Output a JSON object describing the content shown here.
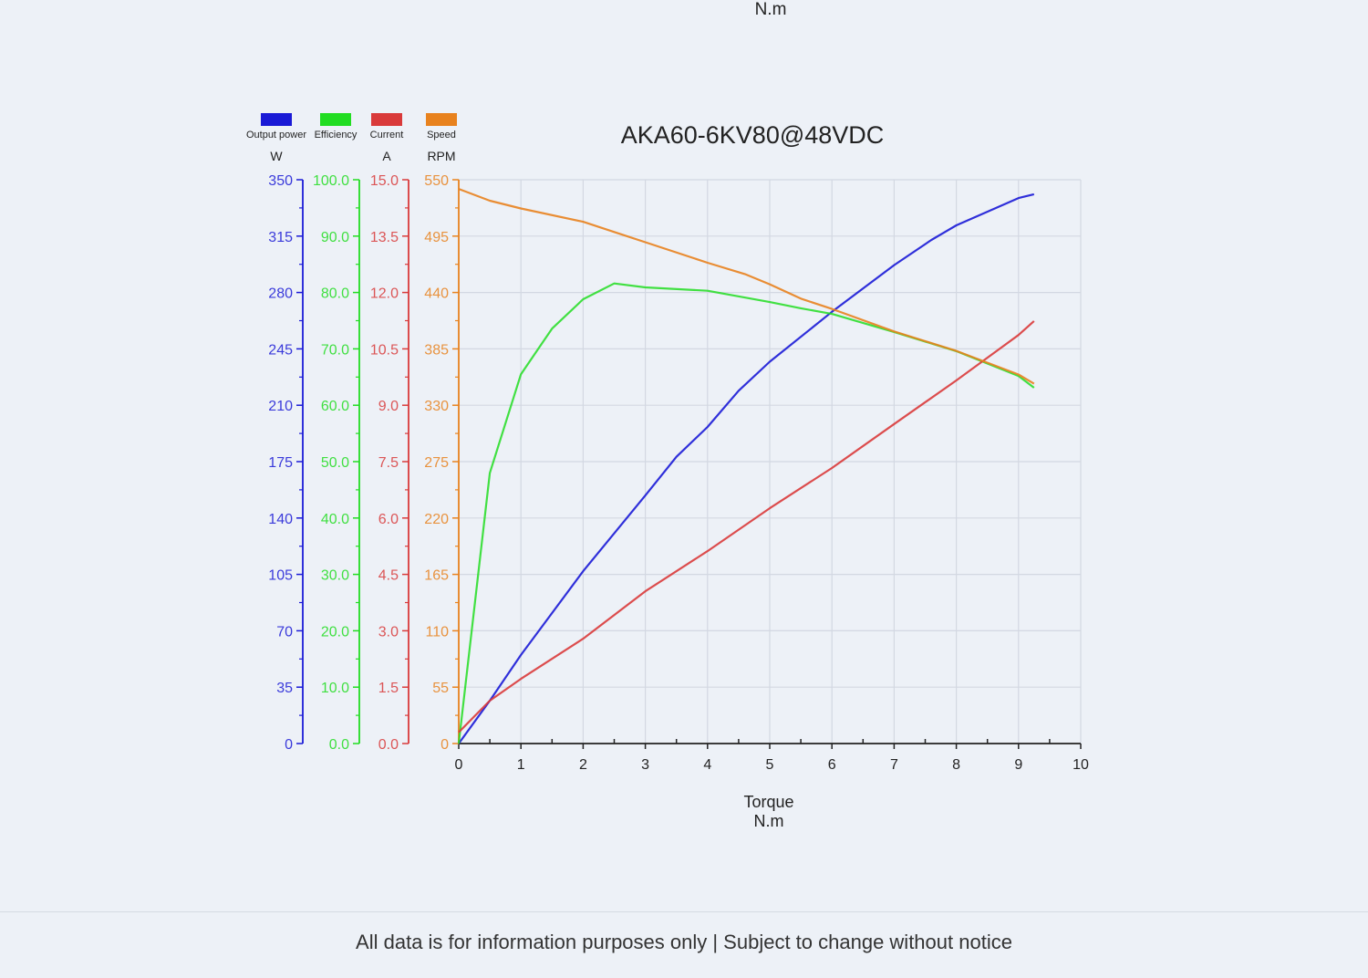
{
  "top_unit_label": "N.m",
  "footer": "All data is for information purposes only | Subject to change without notice",
  "chart_data": {
    "type": "line",
    "title": "AKA60-6KV80@48VDC",
    "xlabel": "Torque",
    "xunit": "N.m",
    "xlim": [
      0,
      10
    ],
    "xticks": [
      "0",
      "1",
      "2",
      "3",
      "4",
      "5",
      "6",
      "7",
      "8",
      "9",
      "10"
    ],
    "grid": true,
    "legend_placement": "top-left",
    "series": [
      {
        "name": "Output power",
        "unit": "W",
        "color": "#1a1ad6",
        "ylim": [
          0,
          350
        ],
        "ticks": [
          "0",
          "35",
          "70",
          "105",
          "140",
          "175",
          "210",
          "245",
          "280",
          "315",
          "350"
        ],
        "x": [
          0,
          0.5,
          1,
          2,
          3,
          3.5,
          4,
          4.5,
          5,
          6,
          7,
          7.6,
          8,
          9,
          9.25
        ],
        "y": [
          0,
          26.6,
          55,
          107,
          154,
          178,
          196.5,
          219,
          237,
          268,
          297,
          312.6,
          321.7,
          338.6,
          341
        ]
      },
      {
        "name": "Efficiency",
        "unit": "",
        "color": "#22dd22",
        "ylim": [
          0,
          100
        ],
        "ticks": [
          "0.0",
          "10.0",
          "20.0",
          "30.0",
          "40.0",
          "50.0",
          "60.0",
          "70.0",
          "80.0",
          "90.0",
          "100.0"
        ],
        "x": [
          0,
          0.5,
          1,
          1.5,
          2,
          2.5,
          3,
          4,
          5,
          5.5,
          6,
          7,
          8,
          9,
          9.25
        ],
        "y": [
          0,
          48,
          65.5,
          73.6,
          78.8,
          81.6,
          80.9,
          80.3,
          78.3,
          77.2,
          76.2,
          73,
          69.6,
          65.2,
          63.1
        ]
      },
      {
        "name": "Current",
        "unit": "A",
        "color": "#d93a3a",
        "ylim": [
          0,
          15
        ],
        "ticks": [
          "0.0",
          "1.5",
          "3.0",
          "4.5",
          "6.0",
          "7.5",
          "9.0",
          "10.5",
          "12.0",
          "13.5",
          "15.0"
        ],
        "x": [
          0,
          0.5,
          1,
          2,
          3,
          4,
          5,
          6,
          7,
          8,
          9,
          9.25
        ],
        "y": [
          0.3,
          1.14,
          1.72,
          2.79,
          4.05,
          5.12,
          6.26,
          7.33,
          8.5,
          9.66,
          10.87,
          11.24
        ]
      },
      {
        "name": "Speed",
        "unit": "RPM",
        "color": "#e8821e",
        "ylim": [
          0,
          550
        ],
        "ticks": [
          "0",
          "55",
          "110",
          "165",
          "220",
          "275",
          "330",
          "385",
          "440",
          "495",
          "550"
        ],
        "x": [
          0,
          0.5,
          1,
          2,
          2.5,
          3,
          4,
          4.6,
          5,
          5.5,
          6,
          7,
          8,
          9,
          9.25
        ],
        "y": [
          541,
          529.5,
          522,
          509,
          499,
          489,
          469,
          458,
          448,
          434,
          424,
          402,
          383,
          360,
          351
        ]
      }
    ]
  }
}
